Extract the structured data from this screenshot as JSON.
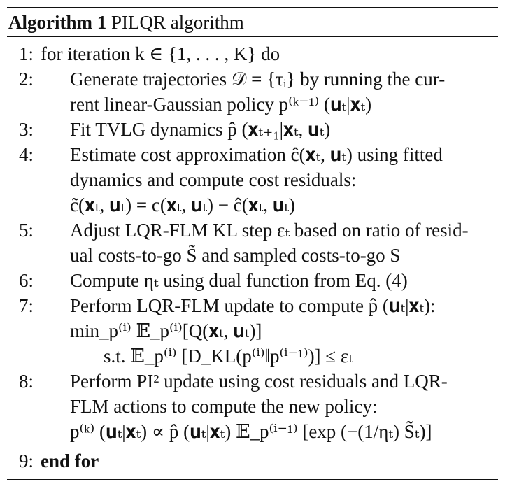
{
  "algorithm": {
    "caption_label": "Algorithm 1",
    "caption_title": "PILQR algorithm",
    "lines": [
      {
        "num": "1:",
        "text": "for iteration k ∈ {1, . . . , K} do"
      },
      {
        "num": "2:",
        "text": "Generate trajectories 𝒟 = {τᵢ} by running the cur-"
      },
      {
        "num": "",
        "text": "rent linear-Gaussian policy p⁽ᵏ⁻¹⁾ (𝐮ₜ|𝐱ₜ)"
      },
      {
        "num": "3:",
        "text": "Fit TVLG dynamics p̂ (𝐱ₜ₊₁|𝐱ₜ, 𝐮ₜ)"
      },
      {
        "num": "4:",
        "text": "Estimate cost approximation ĉ(𝐱ₜ, 𝐮ₜ) using fitted"
      },
      {
        "num": "",
        "text": "dynamics and compute cost residuals:"
      },
      {
        "num": "",
        "text": "c̃(𝐱ₜ, 𝐮ₜ) = c(𝐱ₜ, 𝐮ₜ) − ĉ(𝐱ₜ, 𝐮ₜ)"
      },
      {
        "num": "5:",
        "text": "Adjust LQR-FLM KL step εₜ based on ratio of resid-"
      },
      {
        "num": "",
        "text": "ual costs-to-go S̃ and sampled costs-to-go S"
      },
      {
        "num": "6:",
        "text": "Compute ηₜ using dual function from Eq. (4)"
      },
      {
        "num": "7:",
        "text": "Perform LQR-FLM update to compute p̂ (𝐮ₜ|𝐱ₜ):"
      },
      {
        "num": "",
        "text": "min_p⁽ⁱ⁾  𝔼_p⁽ⁱ⁾[Q(𝐱ₜ, 𝐮ₜ)]"
      },
      {
        "num": "",
        "text": "s.t.  𝔼_p⁽ⁱ⁾ [D_KL(p⁽ⁱ⁾‖p⁽ⁱ⁻¹⁾)] ≤ εₜ"
      },
      {
        "num": "8:",
        "text": "Perform PI² update using cost residuals and LQR-"
      },
      {
        "num": "",
        "text": "FLM actions to compute the new policy:"
      },
      {
        "num": "",
        "text": "p⁽ᵏ⁾ (𝐮ₜ|𝐱ₜ) ∝ p̂ (𝐮ₜ|𝐱ₜ) 𝔼_p⁽ⁱ⁻¹⁾ [exp (−(1/ηₜ) S̃ₜ)]"
      },
      {
        "num": "9:",
        "text": "end for"
      }
    ]
  }
}
